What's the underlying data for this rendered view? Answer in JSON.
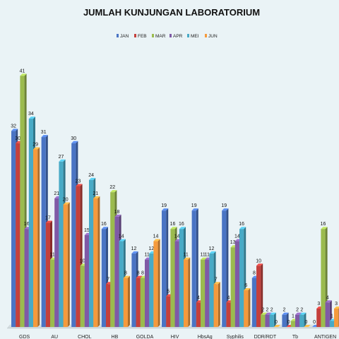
{
  "chart_data": {
    "type": "bar",
    "title": "JUMLAH KUNJUNGAN LABORATORIUM",
    "categories": [
      "GDS",
      "AU",
      "CHOL",
      "HB",
      "GOLDA",
      "HIV",
      "HbsAg",
      "Syphilis",
      "DDR/RDT",
      "Tb",
      "ANTIGEN"
    ],
    "series": [
      {
        "name": "JAN",
        "color": "#4a74c4",
        "values": [
          32,
          31,
          30,
          16,
          12,
          19,
          19,
          19,
          8,
          2,
          0
        ]
      },
      {
        "name": "FEB",
        "color": "#c4403c",
        "values": [
          30,
          17,
          23,
          7,
          8,
          5,
          4,
          4,
          10,
          0,
          3
        ]
      },
      {
        "name": "MAR",
        "color": "#9bbb4e",
        "values": [
          41,
          11,
          10,
          22,
          8,
          16,
          11,
          13,
          2,
          1,
          16
        ]
      },
      {
        "name": "APR",
        "color": "#7f5aa6",
        "values": [
          16,
          21,
          15,
          18,
          11,
          14,
          11,
          14,
          2,
          2,
          4
        ]
      },
      {
        "name": "MEI",
        "color": "#48aac6",
        "values": [
          34,
          27,
          24,
          14,
          12,
          16,
          12,
          16,
          2,
          2,
          1
        ]
      },
      {
        "name": "JUN",
        "color": "#f59a3c",
        "values": [
          29,
          20,
          21,
          8,
          14,
          11,
          7,
          6,
          0,
          0,
          3
        ]
      }
    ],
    "ylim": [
      0,
      43
    ],
    "legend_position": "top",
    "grid": false
  }
}
